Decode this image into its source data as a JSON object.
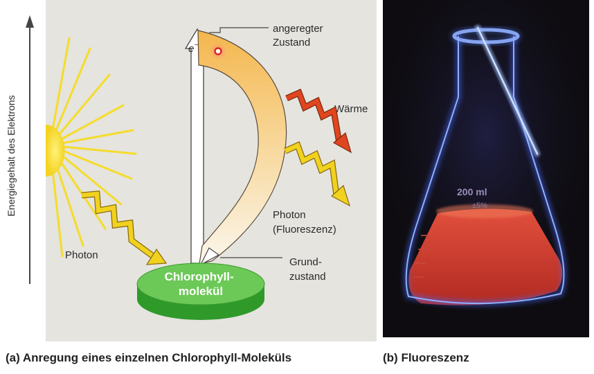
{
  "panel_a": {
    "axis_label": "Energiegehalt des Elektrons",
    "excited_state_label": [
      "angeregter",
      "Zustand"
    ],
    "electron_label": "e",
    "electron_superscript": "−",
    "heat_label": "Wärme",
    "fluorescence_label": [
      "Photon",
      "(Fluoreszenz)"
    ],
    "photon_label": "Photon",
    "ground_state_label": [
      "Grund-",
      "zustand"
    ],
    "molecule_label": [
      "Chlorophyll-",
      "molekül"
    ],
    "caption_letter": "(a)",
    "caption_text": "Anregung eines einzelnen Chlorophyll-Moleküls"
  },
  "panel_b": {
    "flask_marking": "200 ml",
    "flask_marking_sub": "±5%",
    "caption_letter": "(b)",
    "caption_text": "Fluoreszenz"
  },
  "colors": {
    "panel_a_background": "#e5e4df",
    "panel_b_background": "#0e0c10",
    "sun": "#f5dc2a",
    "heat_arrow": "#e0461f",
    "photon_arrow": "#f0d21f",
    "excited_band": "#f6c26a",
    "molecule_disc": "#6cc957",
    "flask_glow": "#5a86ff",
    "liquid": "#e3523c"
  }
}
